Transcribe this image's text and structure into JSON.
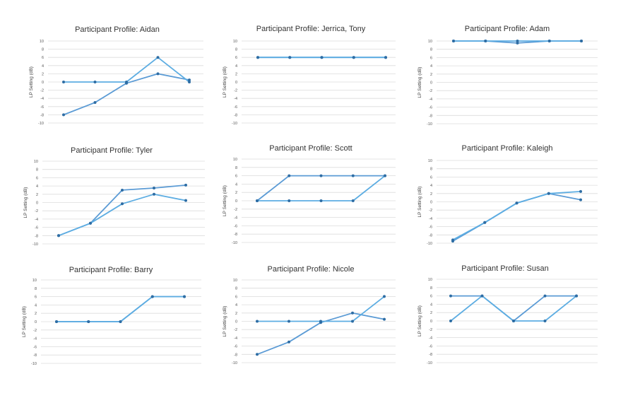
{
  "colors": {
    "series_a": "#5b9bd5",
    "series_b": "#5dade2",
    "marker": "#2e6da4",
    "grid": "#dcdcdc"
  },
  "chart_data": [
    {
      "type": "line",
      "title": "Participant Profile: Aidan",
      "ylabel": "LP Setting (dB)",
      "ylim": [
        -10,
        10
      ],
      "yticks": [
        "10",
        "8",
        "6",
        "4",
        "2",
        "0",
        "-2",
        "-4",
        "-6",
        "-8",
        "-10"
      ],
      "x": [
        1,
        2,
        3,
        4,
        5
      ],
      "series": [
        {
          "values": [
            -8,
            -5,
            -0.3,
            2,
            0.5
          ]
        },
        {
          "values": [
            0,
            0,
            0,
            6,
            0
          ]
        }
      ]
    },
    {
      "type": "line",
      "title": "Participant Profile: Jerrica, Tony",
      "ylabel": "LP Setting (dB)",
      "ylim": [
        -10,
        10
      ],
      "yticks": [
        "10",
        "8",
        "6",
        "4",
        "2",
        "0",
        "-2",
        "-4",
        "-6",
        "-8",
        "-10"
      ],
      "x": [
        1,
        2,
        3,
        4,
        5
      ],
      "series": [
        {
          "values": [
            6,
            6,
            6,
            6,
            6
          ]
        },
        {
          "values": [
            6,
            6,
            6,
            6,
            6
          ]
        }
      ]
    },
    {
      "type": "line",
      "title": "Participant Profile: Adam",
      "ylabel": "LP Setting (dB)",
      "ylim": [
        -10,
        10
      ],
      "yticks": [
        "10",
        "8",
        "6",
        "4",
        "2",
        "0",
        "-2",
        "-4",
        "-6",
        "-8",
        "-10"
      ],
      "x": [
        1,
        2,
        3,
        4,
        5
      ],
      "series": [
        {
          "values": [
            10,
            10,
            9.5,
            10,
            10
          ]
        },
        {
          "values": [
            10,
            10,
            10,
            10,
            10
          ]
        }
      ]
    },
    {
      "type": "line",
      "title": "Participant Profile: Tyler",
      "ylabel": "LP Setting (dB)",
      "ylim": [
        -10,
        10
      ],
      "yticks": [
        "10",
        "8",
        "6",
        "4",
        "2",
        "0",
        "-2",
        "-4",
        "-6",
        "-8",
        "-10"
      ],
      "x": [
        1,
        2,
        3,
        4,
        5
      ],
      "series": [
        {
          "values": [
            -8,
            -5,
            3,
            3.5,
            4.2
          ]
        },
        {
          "values": [
            -8,
            -5,
            -0.3,
            2,
            0.5
          ]
        }
      ]
    },
    {
      "type": "line",
      "title": "Participant Profile: Scott",
      "ylabel": "LP Setting (dB)",
      "ylim": [
        -10,
        10
      ],
      "yticks": [
        "10",
        "8",
        "6",
        "4",
        "2",
        "0",
        "-2",
        "-4",
        "-6",
        "-8",
        "-10"
      ],
      "x": [
        1,
        2,
        3,
        4,
        5
      ],
      "series": [
        {
          "values": [
            0,
            6,
            6,
            6,
            6
          ]
        },
        {
          "values": [
            0,
            0,
            0,
            0,
            6
          ]
        }
      ]
    },
    {
      "type": "line",
      "title": "Participant Profile: Kaleigh",
      "ylabel": "LP Setting (dB)",
      "ylim": [
        -10,
        10
      ],
      "yticks": [
        "10",
        "8",
        "6",
        "4",
        "2",
        "0",
        "-2",
        "-4",
        "-6",
        "-8",
        "-10"
      ],
      "x": [
        1,
        2,
        3,
        4,
        5
      ],
      "series": [
        {
          "values": [
            -9.5,
            -5,
            -0.3,
            2,
            0.5
          ]
        },
        {
          "values": [
            -9.2,
            -5,
            -0.3,
            2,
            2.5
          ]
        }
      ]
    },
    {
      "type": "line",
      "title": "Participant Profile: Barry",
      "ylabel": "LP Setting (dB)",
      "ylim": [
        -10,
        10
      ],
      "yticks": [
        "10",
        "8",
        "6",
        "4",
        "2",
        "0",
        "-2",
        "-4",
        "-6",
        "-8",
        "-10"
      ],
      "x": [
        1,
        2,
        3,
        4,
        5
      ],
      "series": [
        {
          "values": [
            0,
            0,
            0,
            6,
            6
          ]
        },
        {
          "values": [
            0,
            0,
            0,
            6,
            6
          ]
        }
      ]
    },
    {
      "type": "line",
      "title": "Participant Profile: Nicole",
      "ylabel": "LP Setting (dB)",
      "ylim": [
        -10,
        10
      ],
      "yticks": [
        "10",
        "8",
        "6",
        "4",
        "2",
        "0",
        "-2",
        "-4",
        "-6",
        "-8",
        "-10"
      ],
      "x": [
        1,
        2,
        3,
        4,
        5
      ],
      "series": [
        {
          "values": [
            -8,
            -5,
            -0.3,
            2,
            0.5
          ]
        },
        {
          "values": [
            0,
            0,
            0,
            0,
            6
          ]
        }
      ]
    },
    {
      "type": "line",
      "title": "Participant Profile: Susan",
      "ylabel": "LP Setting (dB)",
      "ylim": [
        -10,
        10
      ],
      "yticks": [
        "10",
        "8",
        "6",
        "4",
        "2",
        "0",
        "-2",
        "-4",
        "-6",
        "-8",
        "-10"
      ],
      "x": [
        1,
        2,
        3,
        4,
        5
      ],
      "series": [
        {
          "values": [
            6,
            6,
            0,
            6,
            6
          ]
        },
        {
          "values": [
            0,
            6,
            0,
            0,
            6
          ]
        }
      ]
    }
  ]
}
